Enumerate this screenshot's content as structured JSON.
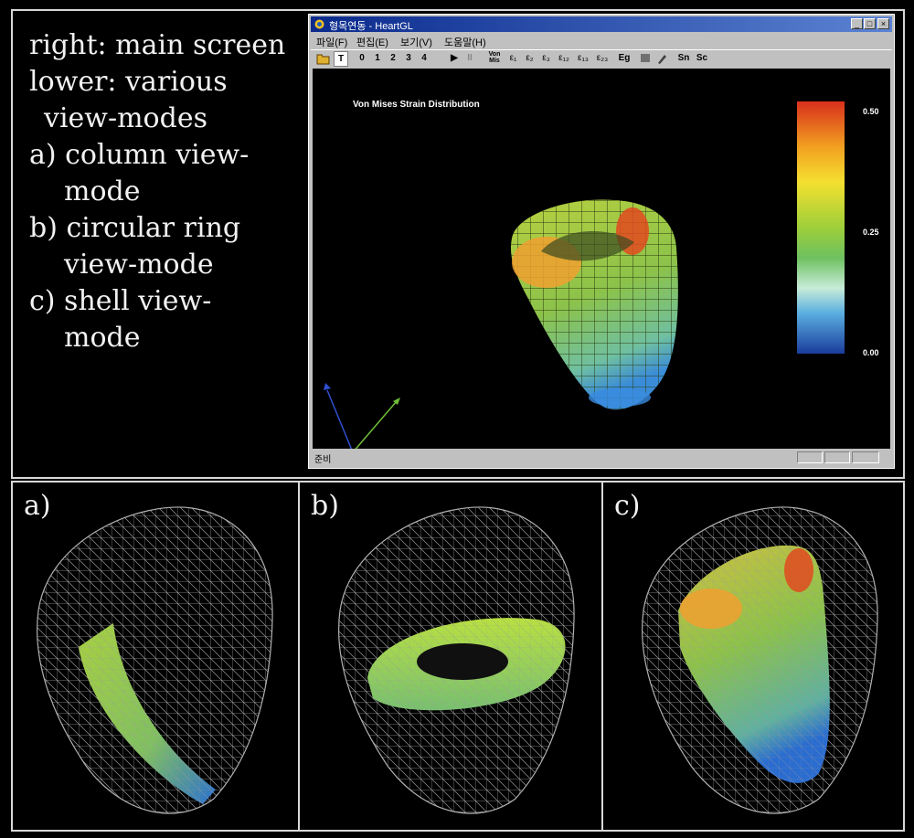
{
  "caption": {
    "lines": [
      "right: main screen",
      "lower: various",
      "view-modes",
      "a) column view-",
      "mode",
      "b) circular ring",
      "view-mode",
      "c) shell view-",
      "mode"
    ]
  },
  "window": {
    "title": "형목연동 - HeartGL",
    "controls": [
      "_",
      "□",
      "×"
    ],
    "menu": [
      "파일(F)",
      "편집(E)",
      "보기(V)",
      "도움말(H)"
    ],
    "toolbar": [
      "T",
      "0",
      "1",
      "2",
      "3",
      "4",
      "▶",
      "II",
      "Von Mis",
      "ε₁",
      "ε₂",
      "ε₃",
      "ε₁₂",
      "ε₁₃",
      "ε₂₃",
      "Eg",
      "Sn",
      "Sc"
    ],
    "status": "준비"
  },
  "viewport": {
    "title": "Von Mises Strain Distribution",
    "colorbar": {
      "max_label": "0.50",
      "mid_label": "0.25",
      "min_label": "0.00",
      "max": 0.5,
      "min": 0.0
    }
  },
  "panels": [
    {
      "label": "a)",
      "mode": "column view-mode"
    },
    {
      "label": "b)",
      "mode": "circular ring view-mode"
    },
    {
      "label": "c)",
      "mode": "shell view-mode"
    }
  ],
  "colors": {
    "axis_x": "#e03030",
    "axis_y": "#6fbf3a",
    "axis_z": "#3050d0",
    "wire": "#9a9a9a"
  }
}
